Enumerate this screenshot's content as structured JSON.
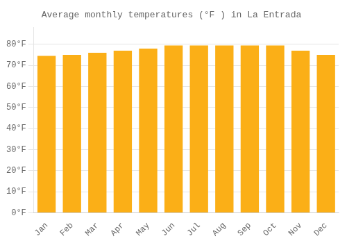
{
  "chart_data": {
    "type": "bar",
    "title": "Average monthly temperatures (°F ) in La Entrada",
    "categories": [
      "Jan",
      "Feb",
      "Mar",
      "Apr",
      "May",
      "Jun",
      "Jul",
      "Aug",
      "Sep",
      "Oct",
      "Nov",
      "Dec"
    ],
    "values": [
      74.5,
      75.0,
      76.0,
      77.0,
      78.0,
      79.5,
      79.5,
      79.5,
      79.5,
      79.5,
      77.0,
      75.0
    ],
    "color": "#FBAF17",
    "ylim": [
      0,
      88
    ],
    "yticks": [
      {
        "value": 0,
        "label": "0°F"
      },
      {
        "value": 10,
        "label": "10°F"
      },
      {
        "value": 20,
        "label": "20°F"
      },
      {
        "value": 30,
        "label": "30°F"
      },
      {
        "value": 40,
        "label": "40°F"
      },
      {
        "value": 50,
        "label": "50°F"
      },
      {
        "value": 60,
        "label": "60°F"
      },
      {
        "value": 70,
        "label": "70°F"
      },
      {
        "value": 80,
        "label": "80°F"
      }
    ],
    "grid": true
  }
}
